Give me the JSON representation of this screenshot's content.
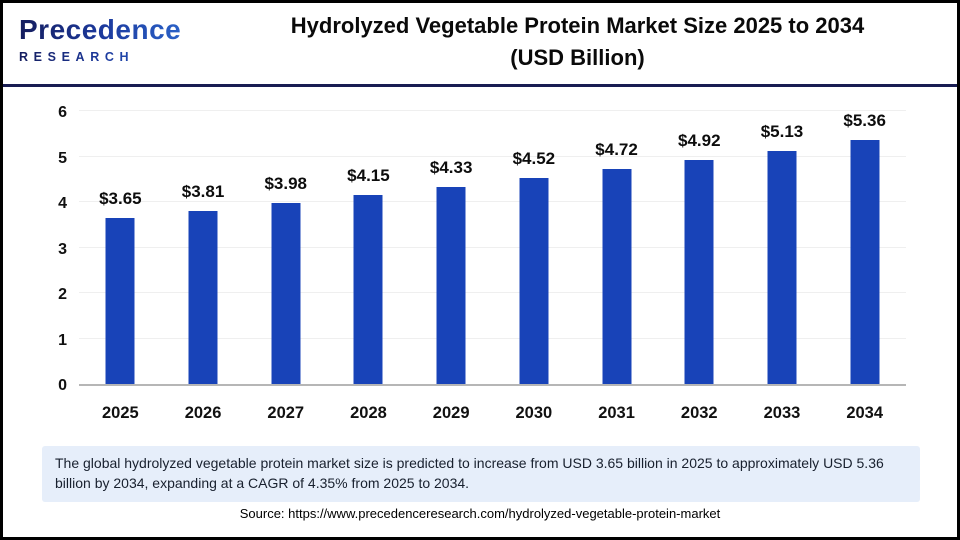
{
  "header": {
    "logo": {
      "brand": "Precedence",
      "sub": "RESEARCH"
    },
    "title_line1": "Hydrolyzed Vegetable Protein Market Size 2025 to 2034",
    "title_line2": "(USD Billion)"
  },
  "chart_data": {
    "type": "bar",
    "title": "Hydrolyzed Vegetable Protein Market Size 2025 to 2034 (USD Billion)",
    "unit": "USD Billion",
    "categories": [
      "2025",
      "2026",
      "2027",
      "2028",
      "2029",
      "2030",
      "2031",
      "2032",
      "2033",
      "2034"
    ],
    "values": [
      3.65,
      3.81,
      3.98,
      4.15,
      4.33,
      4.52,
      4.72,
      4.92,
      5.13,
      5.36
    ],
    "value_labels": [
      "$3.65",
      "$3.81",
      "$3.98",
      "$4.15",
      "$4.33",
      "$4.52",
      "$4.72",
      "$4.92",
      "$5.13",
      "$5.36"
    ],
    "xlabel": "",
    "ylabel": "",
    "ylim": [
      0,
      6
    ],
    "yticks": [
      0,
      1,
      2,
      3,
      4,
      5,
      6
    ],
    "grid": true,
    "legend": "none",
    "bar_color": "#1843b8",
    "gridline_color": "#efefef",
    "baseline_color": "#b6b6b6"
  },
  "footer": {
    "note": "The global hydrolyzed vegetable protein market size is predicted to increase from USD 3.65 billion in 2025 to approximately USD 5.36 billion by 2034, expanding at a CAGR of 4.35% from 2025 to 2034.",
    "source": "Source: https://www.precedenceresearch.com/hydrolyzed-vegetable-protein-market"
  }
}
